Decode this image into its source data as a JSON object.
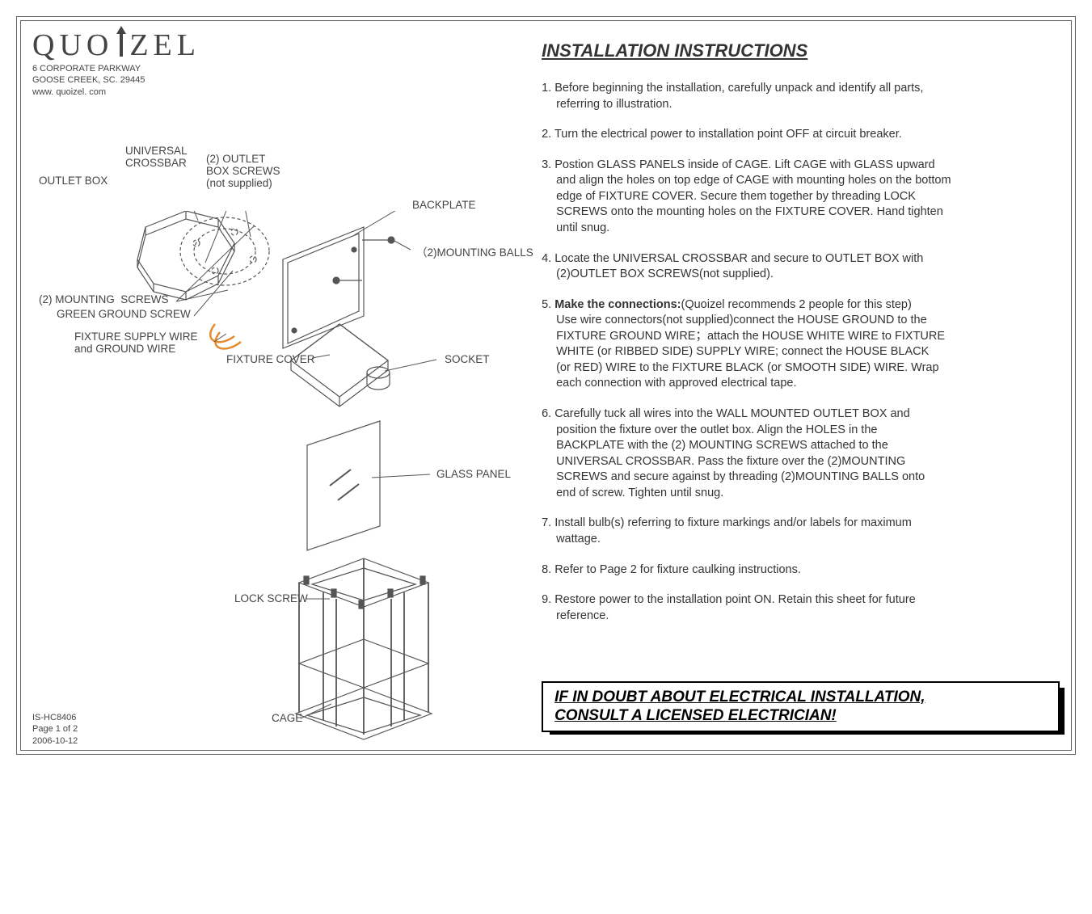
{
  "brand": {
    "name": "QUOIZEL",
    "addr1": "6 CORPORATE PARKWAY",
    "addr2": "GOOSE CREEK, SC. 29445",
    "addr3": "www. quoizel. com"
  },
  "title": "INSTALLATION  INSTRUCTIONS",
  "instructions": [
    "1. Before beginning  the  installation, carefully unpack and identify all parts,\n    referring to illustration.",
    "2. Turn the  electrical  power to installation point OFF at  circuit  breaker.",
    "3. Postion GLASS PANELS inside of CAGE. Lift CAGE with GLASS upward\n    and align the holes on top edge of CAGE with mounting holes on the bottom\n    edge of FIXTURE COVER. Secure them together by threading LOCK\n    SCREWS onto the mounting holes on the FIXTURE COVER. Hand tighten\n    until snug.",
    "4. Locate the UNIVERSAL  CROSSBAR and secure to OUTLET BOX with\n     (2)OUTLET BOX SCREWS(not supplied).",
    "__BOLDPREFIX__5. Make the connections:__ENDBOLD__(Quoizel recommends 2 people for this step)\n    Use wire connectors(not supplied)connect the  HOUSE GROUND  to  the\n    FIXTURE  GROUND  WIRE；attach the HOUSE WHITE WIRE to FIXTURE\n    WHITE (or RIBBED SIDE) SUPPLY WIRE; connect the  HOUSE BLACK\n    (or RED) WIRE to the FIXTURE BLACK (or SMOOTH  SIDE) WIRE.  Wrap\n    each  connection with approved electrical tape.",
    "6. Carefully tuck all wires into the WALL MOUNTED OUTLET BOX and\n    position the fixture over the outlet box. Align the HOLES in the\n    BACKPLATE with the (2) MOUNTING SCREWS attached to the\n    UNIVERSAL CROSSBAR. Pass the fixture over the (2)MOUNTING\n    SCREWS and secure against by threading (2)MOUNTING BALLS onto\n    end of screw. Tighten until snug.",
    "7. Install bulb(s) referring to fixture markings and/or labels for maximum\n    wattage.",
    "8. Refer to Page 2 for fixture caulking instructions.",
    "9. Restore power to the installation point ON. Retain this sheet for future\n    reference."
  ],
  "warning": "IF IN DOUBT ABOUT ELECTRICAL INSTALLATION,\nCONSULT A LICENSED ELECTRICIAN!",
  "footer": {
    "model": "IS-HC8406",
    "page": "Page 1 of 2",
    "date": "2006-10-12"
  },
  "labels": {
    "outlet_box": "OUTLET BOX",
    "universal_crossbar": "UNIVERSAL\nCROSSBAR",
    "outlet_box_screws": "(2) OUTLET\nBOX SCREWS\n(not supplied)",
    "backplate": "BACKPLATE",
    "mounting_balls": "（2)MOUNTING BALLS",
    "mounting_screws": "(2) MOUNTING  SCREWS",
    "green_ground": "GREEN GROUND SCREW",
    "supply_wire": "FIXTURE SUPPLY WIRE\nand GROUND WIRE",
    "fixture_cover": "FIXTURE COVER",
    "socket": "SOCKET",
    "glass_panel": "GLASS PANEL",
    "lock_screw": "LOCK SCREW",
    "cage": "CAGE"
  },
  "diagram_style": {
    "stroke": "#555555",
    "stroke_width": 1.2,
    "dash": "4 3",
    "orange": "#e68a2e",
    "label_color": "#444444",
    "label_fontsize": 13.5
  }
}
